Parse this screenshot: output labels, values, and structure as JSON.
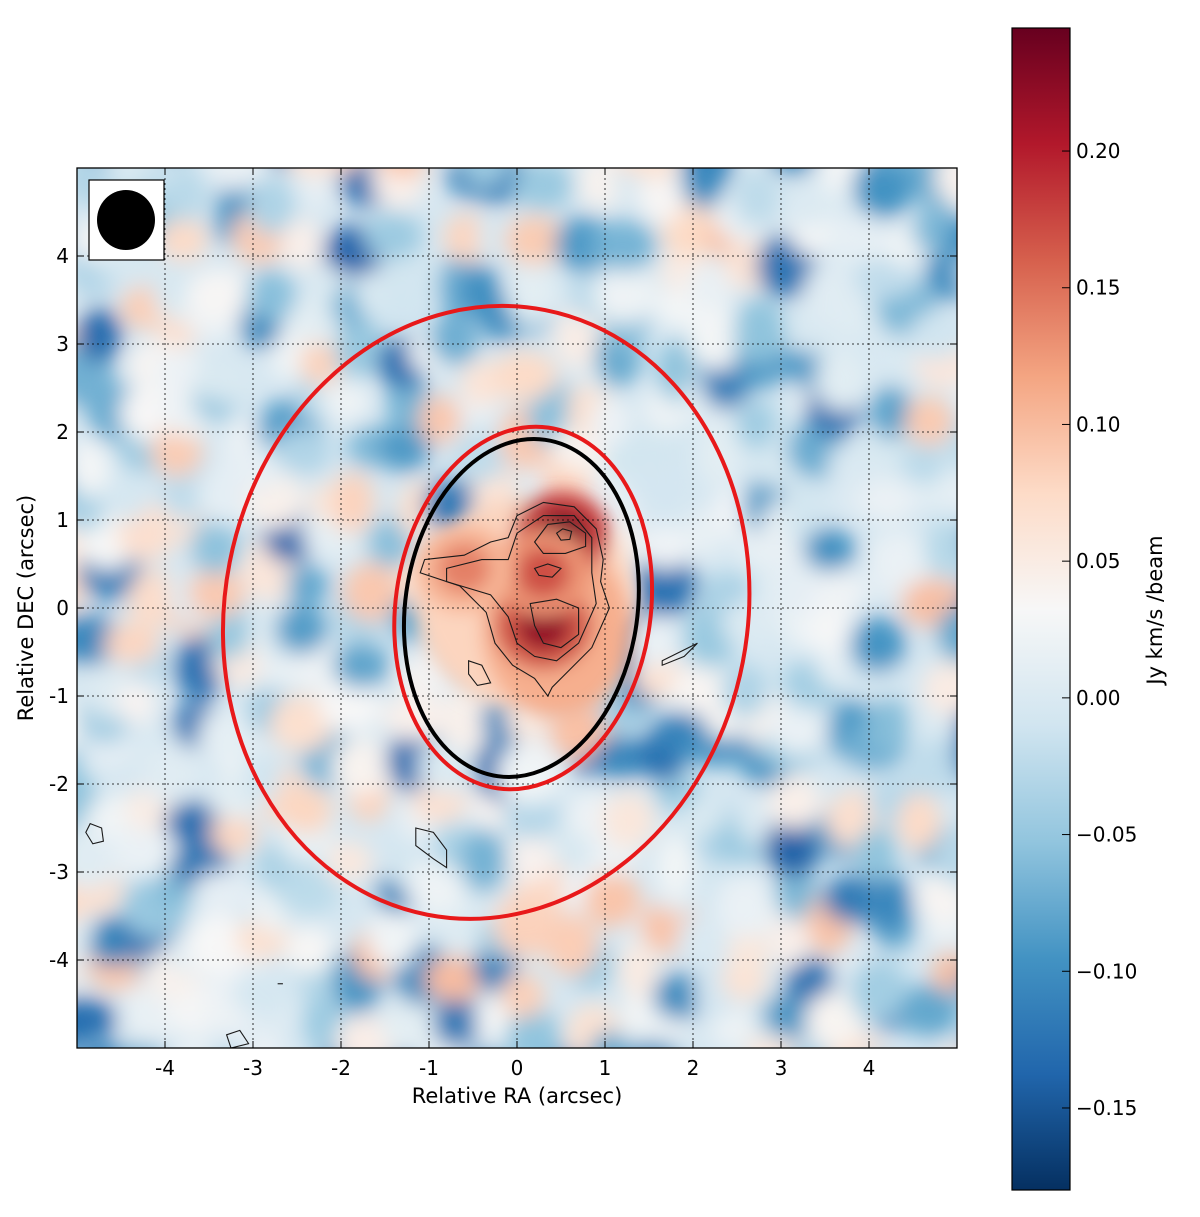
{
  "chart_data": {
    "type": "heatmap",
    "title": "",
    "xlabel": "Relative RA (arcsec)",
    "ylabel": "Relative DEC (arcsec)",
    "xlim": [
      -5,
      5
    ],
    "ylim": [
      -5,
      5
    ],
    "x_ticks": [
      -4,
      -3,
      -2,
      -1,
      0,
      1,
      2,
      3,
      4
    ],
    "y_ticks": [
      -4,
      -3,
      -2,
      -1,
      0,
      1,
      2,
      3,
      4
    ],
    "grid": true,
    "colorbar": {
      "label": "Jy km/s /beam",
      "range": [
        -0.18,
        0.245
      ],
      "ticks": [
        -0.15,
        -0.1,
        -0.05,
        0.0,
        0.05,
        0.1,
        0.15,
        0.2
      ],
      "tick_labels": [
        "−0.15",
        "−0.10",
        "−0.05",
        "0.00",
        "0.05",
        "0.10",
        "0.15",
        "0.20"
      ],
      "colormap": "RdBu_r",
      "colors": [
        "#053061",
        "#2166ac",
        "#4393c3",
        "#92c5de",
        "#d1e5f0",
        "#f7f7f7",
        "#fddbc7",
        "#f4a582",
        "#d6604d",
        "#b2182b",
        "#67001f"
      ]
    },
    "beam": {
      "major": 0.85,
      "minor": 0.75,
      "position": "top-left"
    },
    "ellipses": [
      {
        "color": "#e8191a",
        "center": [
          -0.35,
          -0.05
        ],
        "semi_axes": [
          2.97,
          3.5
        ],
        "angle_deg": -11
      },
      {
        "color": "#e8191a",
        "center": [
          0.07,
          0.0
        ],
        "semi_axes": [
          1.45,
          2.07
        ],
        "angle_deg": -8
      },
      {
        "color": "#000000",
        "center": [
          0.05,
          0.0
        ],
        "semi_axes": [
          1.32,
          1.93
        ],
        "angle_deg": -8
      }
    ],
    "emission_peaks": [
      {
        "x": 0.5,
        "y": 0.82,
        "value": 0.24
      },
      {
        "x": 0.3,
        "y": -0.2,
        "value": 0.22
      },
      {
        "x": 0.3,
        "y": 0.4,
        "value": 0.17
      },
      {
        "x": -0.6,
        "y": 0.45,
        "value": 0.14
      }
    ]
  }
}
